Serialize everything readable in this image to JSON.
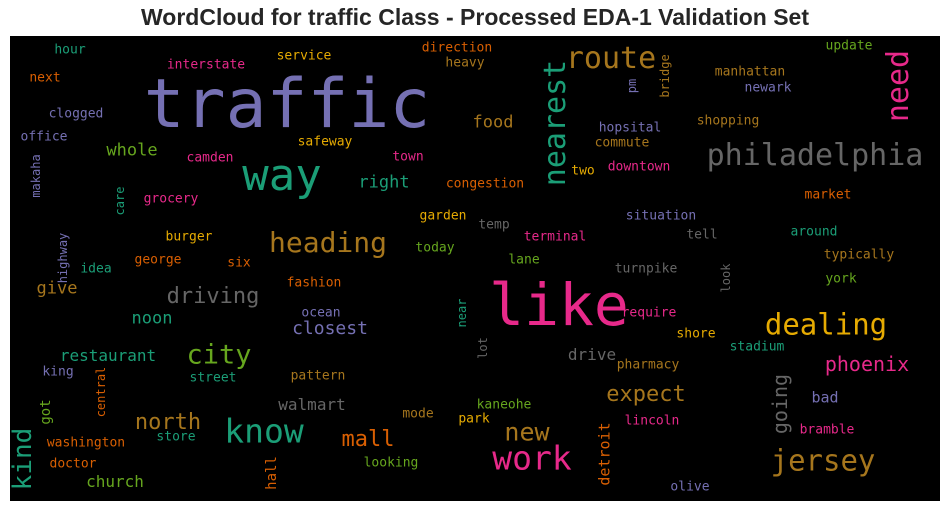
{
  "chart_data": {
    "type": "wordcloud",
    "title": "WordCloud for traffic Class - Processed EDA-1 Validation Set",
    "words": [
      {
        "text": "traffic",
        "color": "#7570b3"
      },
      {
        "text": "like",
        "color": "#e7298a"
      },
      {
        "text": "way",
        "color": "#1b9e77"
      },
      {
        "text": "philadelphia",
        "color": "#666666"
      },
      {
        "text": "route",
        "color": "#a6761d"
      },
      {
        "text": "nearest",
        "color": "#1b9e77"
      },
      {
        "text": "need",
        "color": "#e7298a"
      },
      {
        "text": "heading",
        "color": "#a6761d"
      },
      {
        "text": "know",
        "color": "#1b9e77"
      },
      {
        "text": "work",
        "color": "#e7298a"
      },
      {
        "text": "city",
        "color": "#66a61e"
      },
      {
        "text": "dealing",
        "color": "#e6ab02"
      },
      {
        "text": "jersey",
        "color": "#a6761d"
      },
      {
        "text": "new",
        "color": "#a6761d"
      },
      {
        "text": "kind",
        "color": "#1b9e77"
      },
      {
        "text": "driving",
        "color": "#666666"
      },
      {
        "text": "north",
        "color": "#a6761d"
      },
      {
        "text": "mall",
        "color": "#d95f02"
      },
      {
        "text": "expect",
        "color": "#a6761d"
      },
      {
        "text": "going",
        "color": "#666666"
      },
      {
        "text": "phoenix",
        "color": "#e7298a"
      },
      {
        "text": "closest",
        "color": "#7570b3"
      },
      {
        "text": "food",
        "color": "#a6761d"
      },
      {
        "text": "whole",
        "color": "#66a61e"
      },
      {
        "text": "right",
        "color": "#1b9e77"
      },
      {
        "text": "give",
        "color": "#a6761d"
      },
      {
        "text": "noon",
        "color": "#1b9e77"
      },
      {
        "text": "restaurant",
        "color": "#1b9e77"
      },
      {
        "text": "church",
        "color": "#66a61e"
      },
      {
        "text": "walmart",
        "color": "#666666"
      },
      {
        "text": "drive",
        "color": "#666666"
      },
      {
        "text": "bad",
        "color": "#7570b3"
      },
      {
        "text": "detroit",
        "color": "#d95f02"
      },
      {
        "text": "got",
        "color": "#66a61e"
      },
      {
        "text": "hall",
        "color": "#d95f02"
      },
      {
        "text": "safeway",
        "color": "#e6ab02"
      },
      {
        "text": "town",
        "color": "#e7298a"
      },
      {
        "text": "two",
        "color": "#e6ab02"
      },
      {
        "text": "downtown",
        "color": "#e7298a"
      },
      {
        "text": "congestion",
        "color": "#d95f02"
      },
      {
        "text": "hopsital",
        "color": "#7570b3"
      },
      {
        "text": "commute",
        "color": "#a6761d"
      },
      {
        "text": "shopping",
        "color": "#a6761d"
      },
      {
        "text": "hour",
        "color": "#1b9e77"
      },
      {
        "text": "next",
        "color": "#d95f02"
      },
      {
        "text": "clogged",
        "color": "#7570b3"
      },
      {
        "text": "office",
        "color": "#7570b3"
      },
      {
        "text": "makaha",
        "color": "#7570b3"
      },
      {
        "text": "highway",
        "color": "#7570b3"
      },
      {
        "text": "care",
        "color": "#1b9e77"
      },
      {
        "text": "camden",
        "color": "#e7298a"
      },
      {
        "text": "grocery",
        "color": "#e7298a"
      },
      {
        "text": "interstate",
        "color": "#e7298a"
      },
      {
        "text": "service",
        "color": "#e6ab02"
      },
      {
        "text": "direction",
        "color": "#d95f02"
      },
      {
        "text": "heavy",
        "color": "#a6761d"
      },
      {
        "text": "pm",
        "color": "#7570b3"
      },
      {
        "text": "bridge",
        "color": "#a6761d"
      },
      {
        "text": "update",
        "color": "#66a61e"
      },
      {
        "text": "manhattan",
        "color": "#a6761d"
      },
      {
        "text": "newark",
        "color": "#7570b3"
      },
      {
        "text": "market",
        "color": "#d95f02"
      },
      {
        "text": "situation",
        "color": "#7570b3"
      },
      {
        "text": "around",
        "color": "#1b9e77"
      },
      {
        "text": "tell",
        "color": "#666666"
      },
      {
        "text": "typically",
        "color": "#a6761d"
      },
      {
        "text": "york",
        "color": "#66a61e"
      },
      {
        "text": "look",
        "color": "#666666"
      },
      {
        "text": "turnpike",
        "color": "#666666"
      },
      {
        "text": "temp",
        "color": "#666666"
      },
      {
        "text": "terminal",
        "color": "#e7298a"
      },
      {
        "text": "garden",
        "color": "#e6ab02"
      },
      {
        "text": "today",
        "color": "#66a61e"
      },
      {
        "text": "lane",
        "color": "#66a61e"
      },
      {
        "text": "burger",
        "color": "#e6ab02"
      },
      {
        "text": "george",
        "color": "#d95f02"
      },
      {
        "text": "six",
        "color": "#d95f02"
      },
      {
        "text": "idea",
        "color": "#1b9e77"
      },
      {
        "text": "fashion",
        "color": "#d95f02"
      },
      {
        "text": "ocean",
        "color": "#7570b3"
      },
      {
        "text": "near",
        "color": "#1b9e77"
      },
      {
        "text": "require",
        "color": "#e7298a"
      },
      {
        "text": "shore",
        "color": "#e6ab02"
      },
      {
        "text": "lot",
        "color": "#666666"
      },
      {
        "text": "stadium",
        "color": "#1b9e77"
      },
      {
        "text": "pharmacy",
        "color": "#a6761d"
      },
      {
        "text": "king",
        "color": "#7570b3"
      },
      {
        "text": "central",
        "color": "#d95f02"
      },
      {
        "text": "street",
        "color": "#1b9e77"
      },
      {
        "text": "pattern",
        "color": "#a6761d"
      },
      {
        "text": "kaneohe",
        "color": "#66a61e"
      },
      {
        "text": "park",
        "color": "#e6ab02"
      },
      {
        "text": "mode",
        "color": "#a6761d"
      },
      {
        "text": "lincoln",
        "color": "#e7298a"
      },
      {
        "text": "bramble",
        "color": "#e7298a"
      },
      {
        "text": "washington",
        "color": "#d95f02"
      },
      {
        "text": "store",
        "color": "#1b9e77"
      },
      {
        "text": "doctor",
        "color": "#d95f02"
      },
      {
        "text": "looking",
        "color": "#66a61e"
      },
      {
        "text": "olive",
        "color": "#7570b3"
      }
    ]
  }
}
